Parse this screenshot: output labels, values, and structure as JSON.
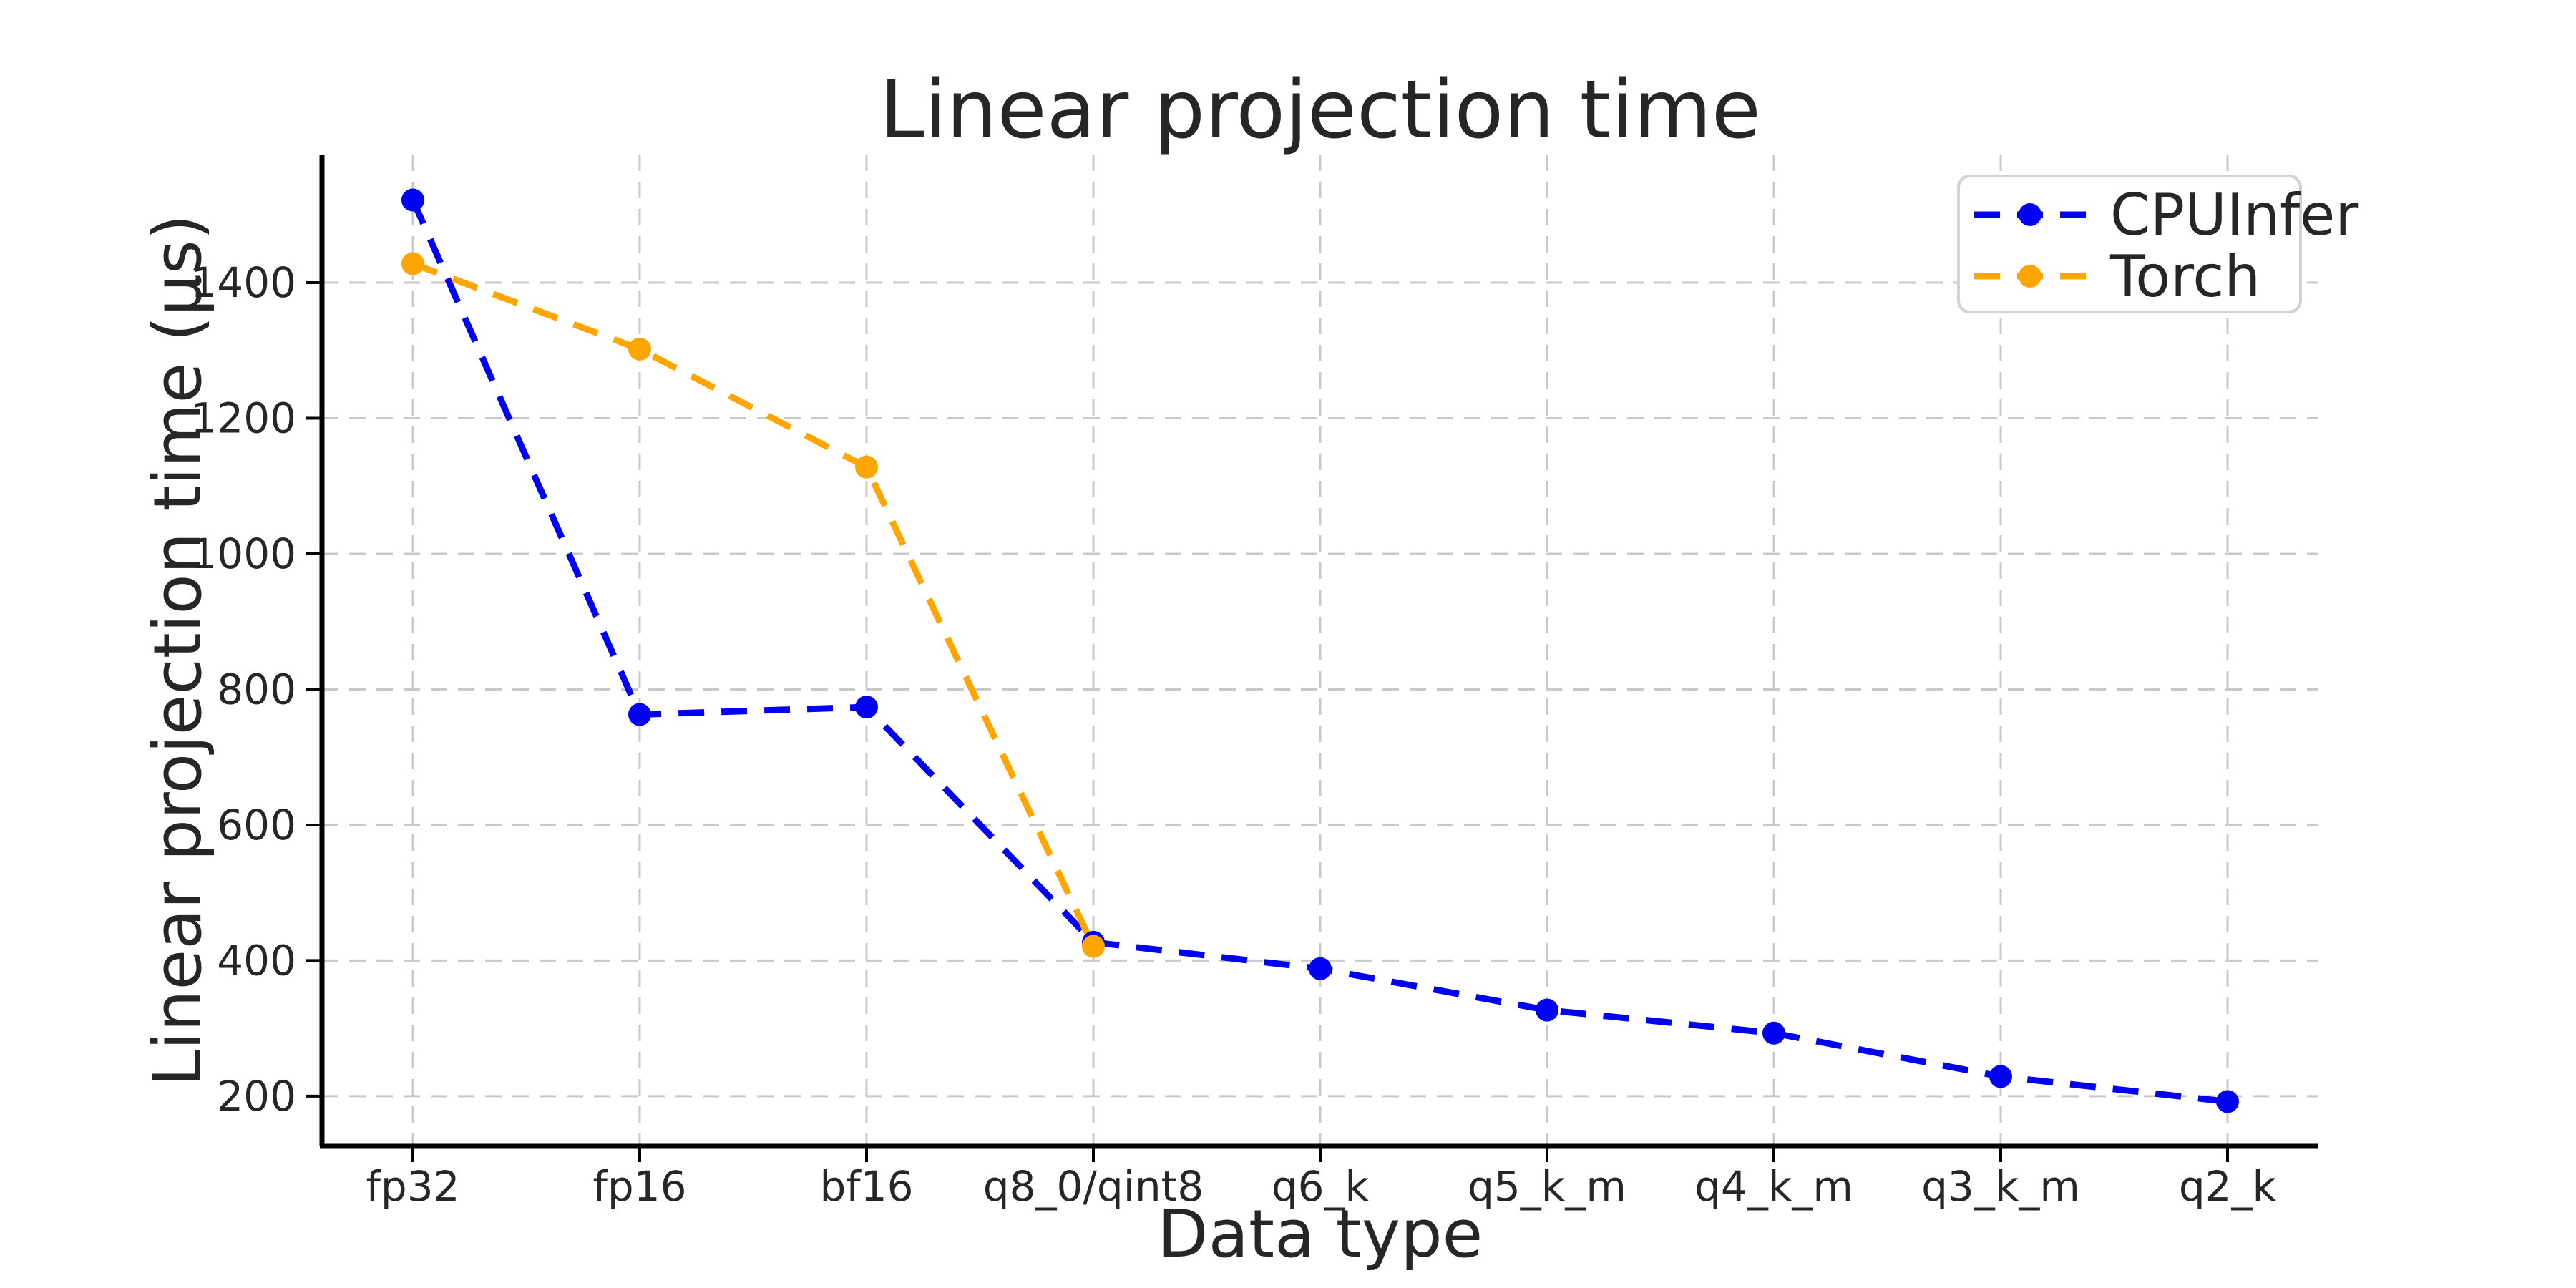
{
  "figure": {
    "title": "Linear projection time",
    "xlabel": "Data type",
    "ylabel": "Linear projection time (μs)"
  },
  "legend": {
    "position": "upper-right",
    "items": [
      {
        "label": "CPUInfer",
        "color": "#0202f2",
        "marker": "circle",
        "line_style": "dashed"
      },
      {
        "label": "Torch",
        "color": "#ffa500",
        "marker": "circle",
        "line_style": "dashed"
      }
    ]
  },
  "chart_data": {
    "type": "line",
    "title": "Linear projection time",
    "xlabel": "Data type",
    "ylabel": "Linear projection time (μs)",
    "categories": [
      "fp32",
      "fp16",
      "bf16",
      "q8_0/qint8",
      "q6_k",
      "q5_k_m",
      "q4_k_m",
      "q3_k_m",
      "q2_k"
    ],
    "series": [
      {
        "name": "CPUInfer",
        "color": "#0202f2",
        "line_style": "dashed",
        "marker": "circle",
        "values": [
          1522,
          763,
          774,
          427,
          388,
          327,
          293,
          229,
          192
        ]
      },
      {
        "name": "Torch",
        "color": "#ffa500",
        "line_style": "dashed",
        "marker": "circle",
        "values": [
          1428,
          1302,
          1128,
          421
        ]
      }
    ],
    "yticks": [
      200,
      400,
      600,
      800,
      1000,
      1200,
      1400
    ],
    "ylim": [
      126,
      1589
    ],
    "grid": true,
    "grid_style": "dashed",
    "legend_position": "upper right",
    "colors": {
      "grid": "#c9c9c9",
      "text": "#262626",
      "spine": "#000000",
      "legend_border": "#d2d2d2",
      "background": "#ffffff"
    }
  }
}
